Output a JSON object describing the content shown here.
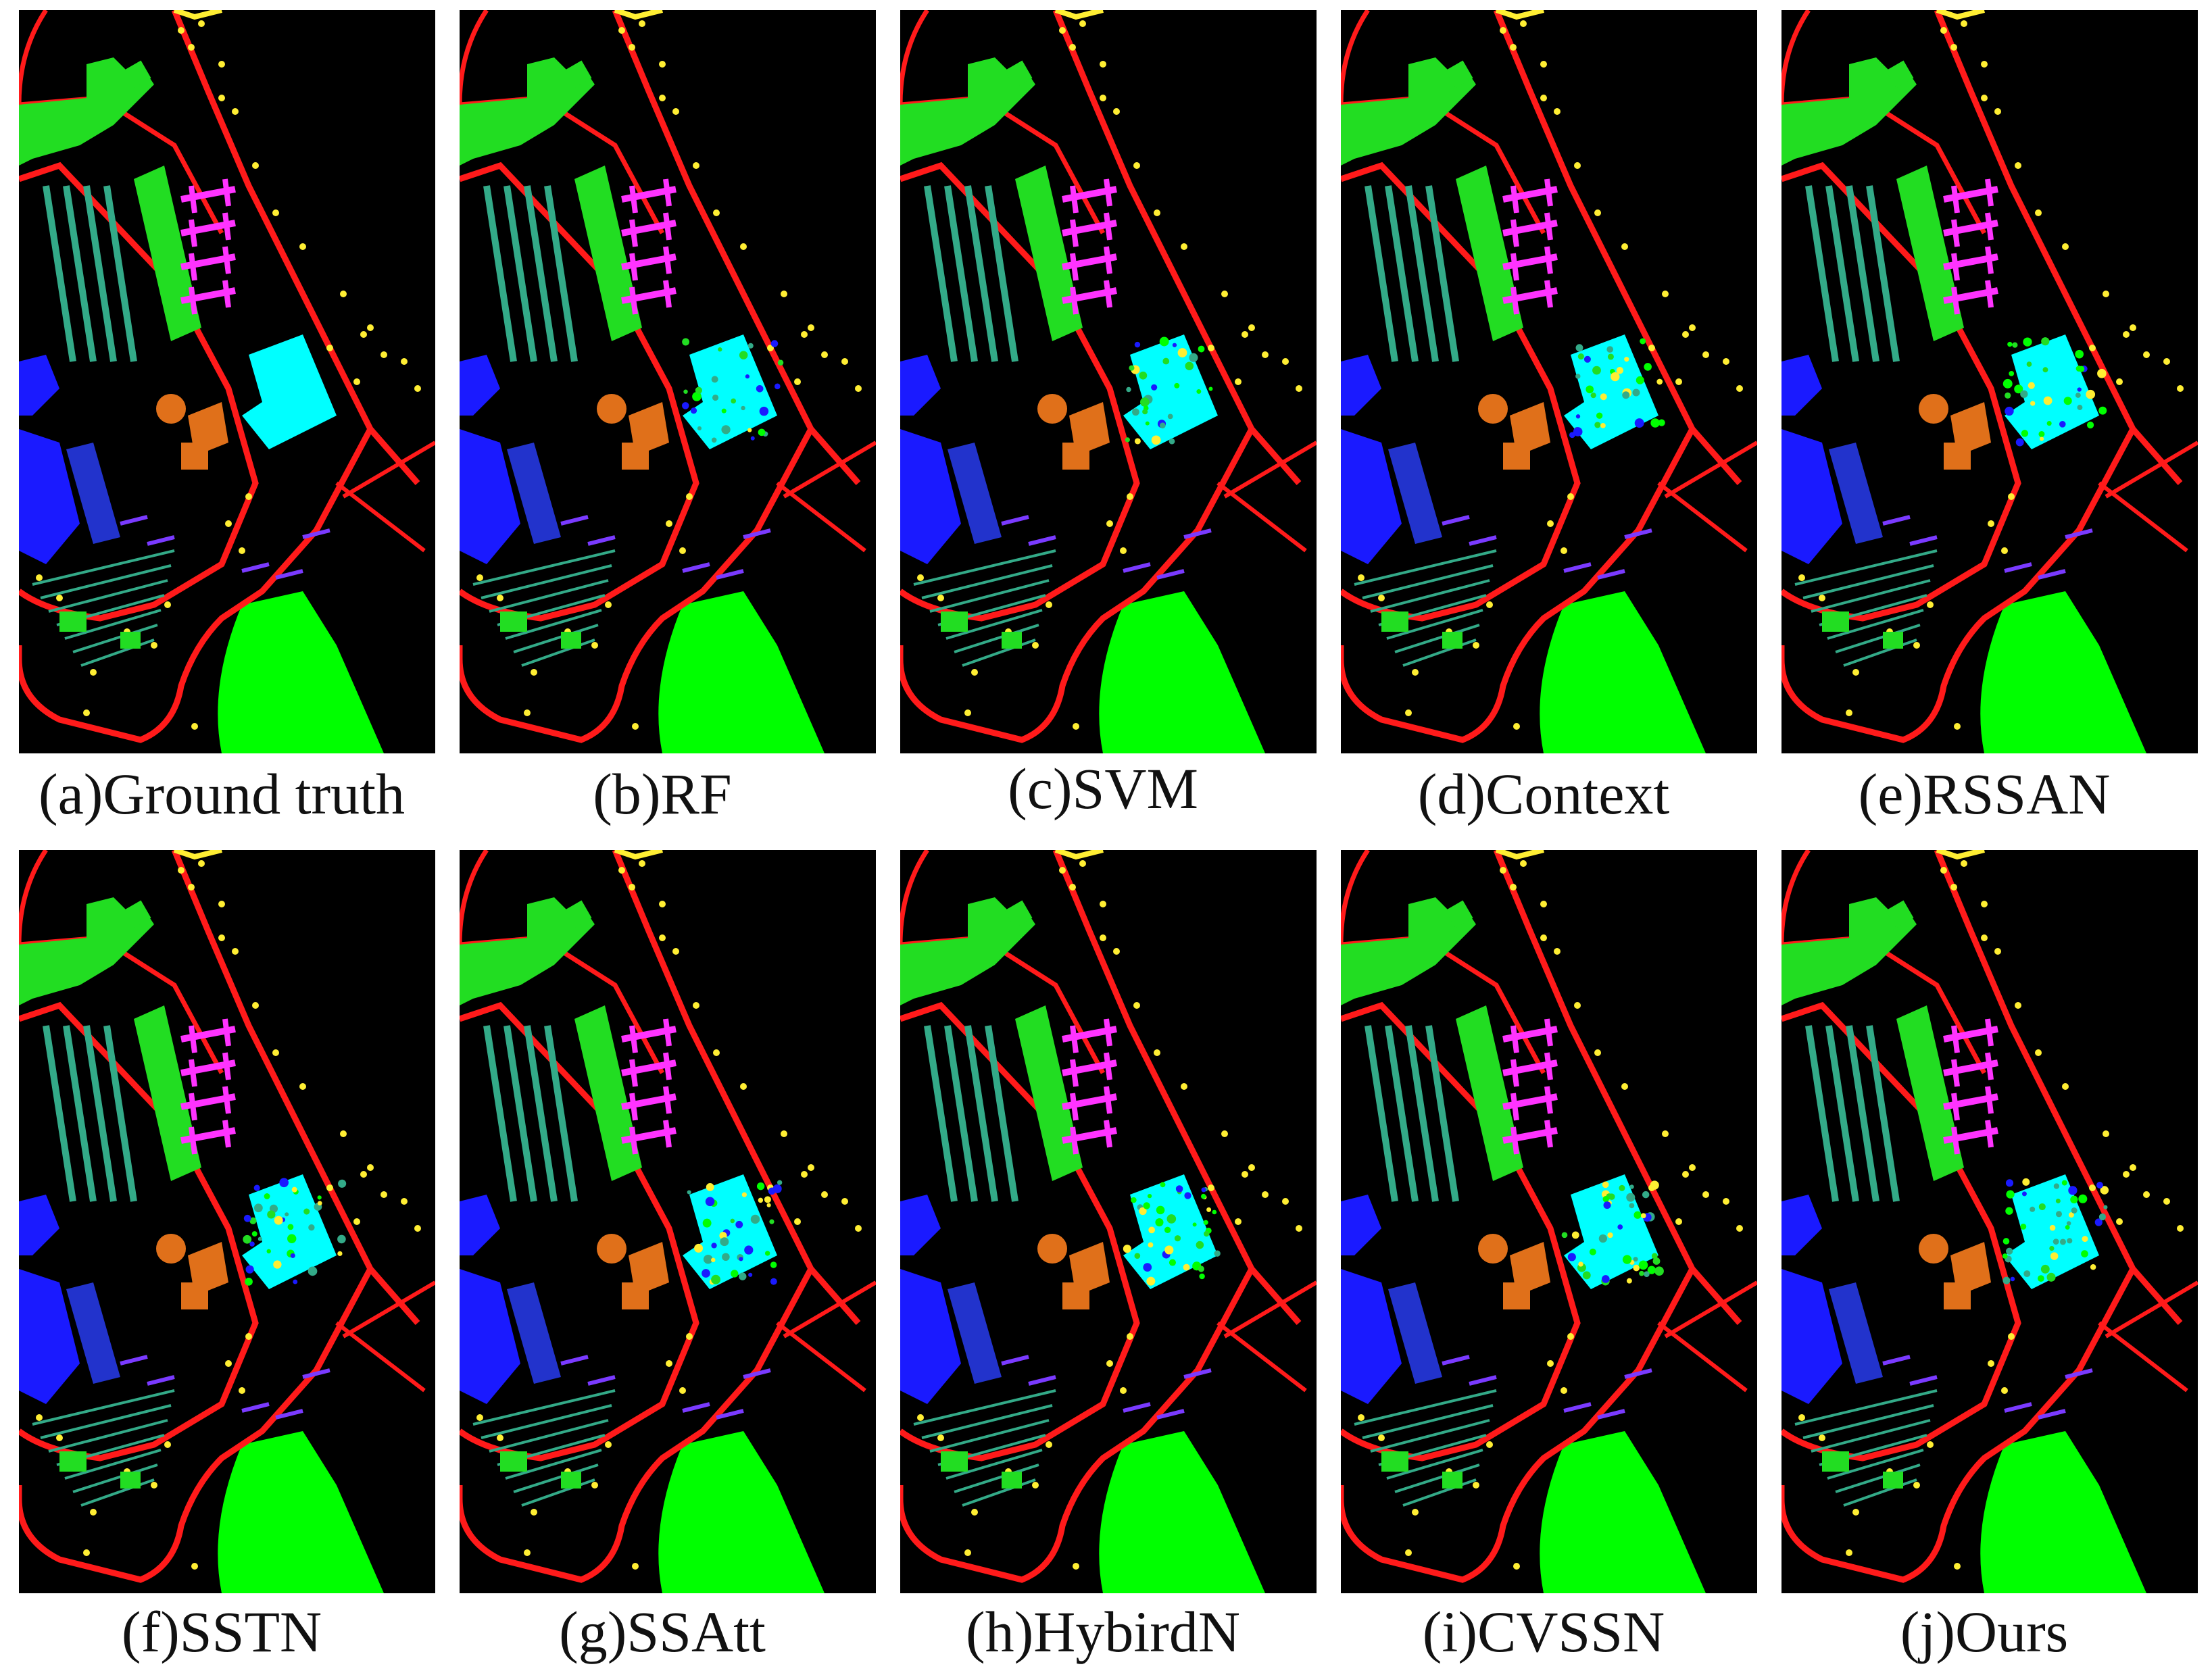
{
  "figure": {
    "panels": [
      {
        "label": "(a)Ground truth"
      },
      {
        "label": "(b)RF"
      },
      {
        "label": "(c)SVM"
      },
      {
        "label": "(d)Context"
      },
      {
        "label": "(e)RSSAN"
      },
      {
        "label": "(f)SSTN"
      },
      {
        "label": "(g)SSAtt"
      },
      {
        "label": "(h)HybirdN"
      },
      {
        "label": "(i)CVSSN"
      },
      {
        "label": "(j)Ours"
      }
    ],
    "class_colors": {
      "road": "#ff1a1a",
      "grass": "#00ff00",
      "building_green": "#22dd22",
      "cyan_field": "#00ffff",
      "magenta": "#ff33ff",
      "blue": "#1a1aff",
      "teal": "#33aa88",
      "orange": "#e0701a",
      "yellow": "#ffee33",
      "purple": "#7a3aff"
    }
  }
}
